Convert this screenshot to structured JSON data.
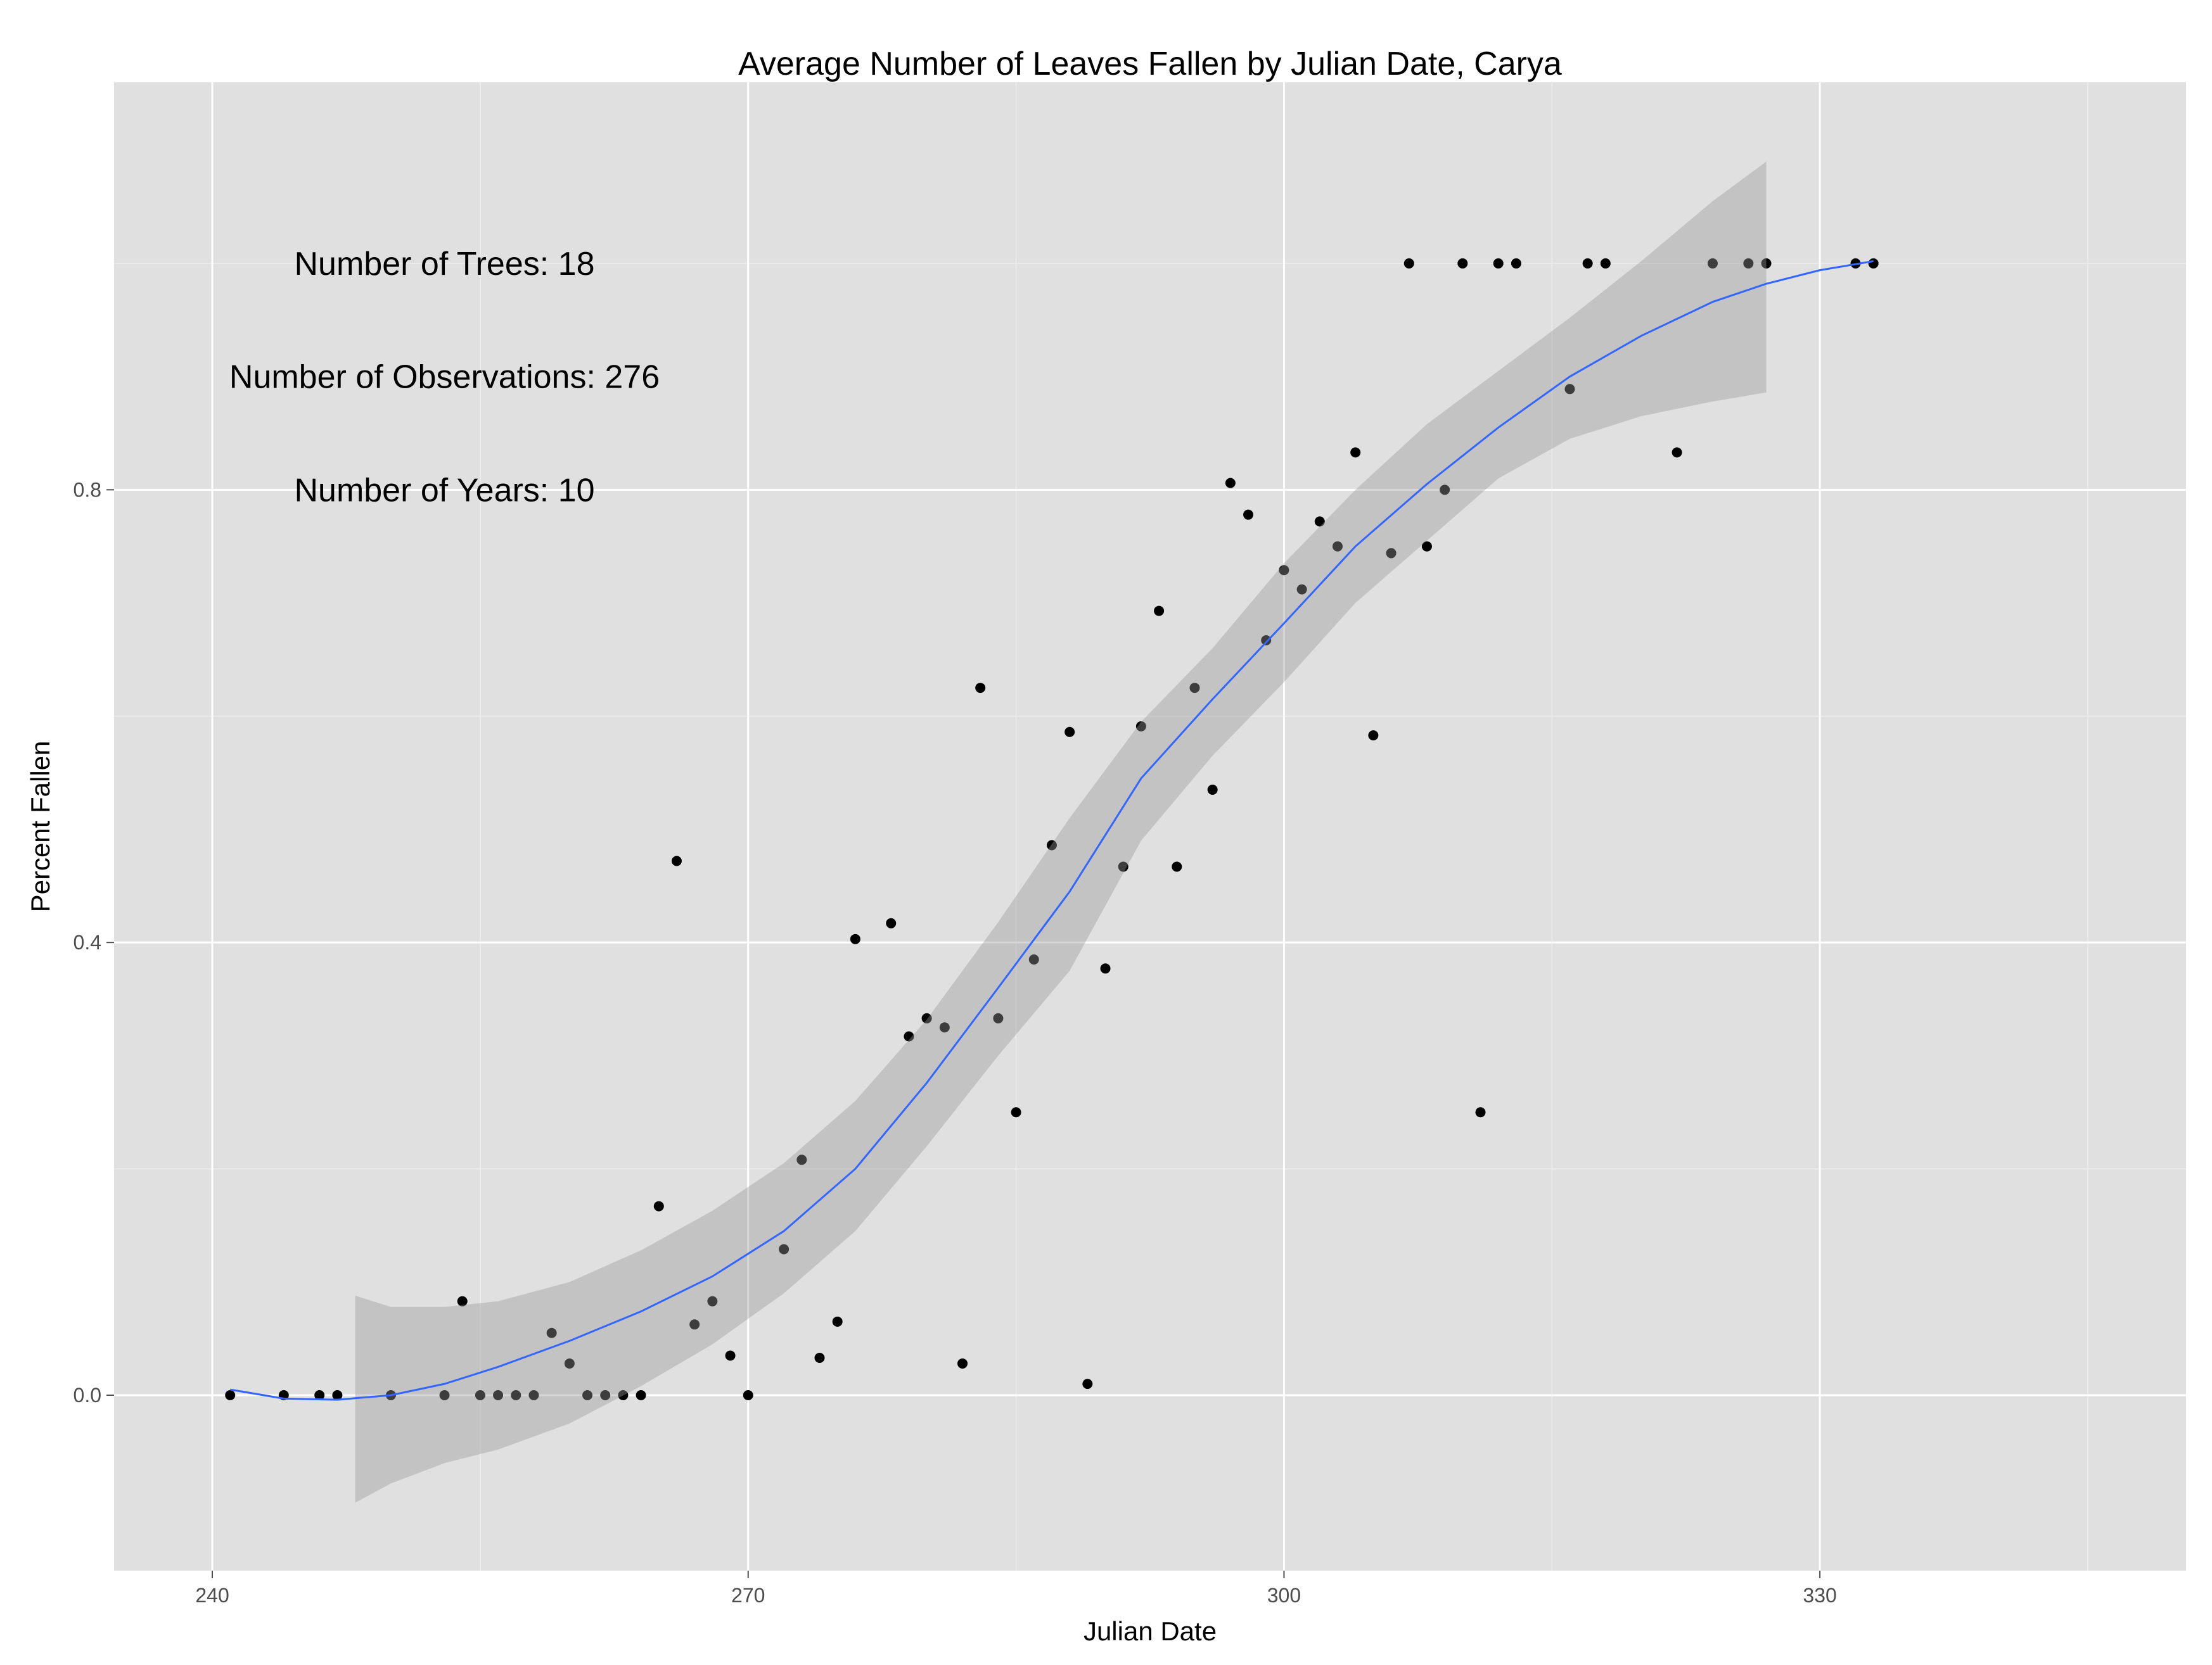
{
  "chart_data": {
    "type": "scatter",
    "title": "Average Number of Leaves Fallen by Julian Date, Carya",
    "xlabel": "Julian Date",
    "ylabel": "Percent Fallen",
    "xlim": [
      234.5,
      350.5
    ],
    "ylim": [
      -0.155,
      1.16
    ],
    "x_ticks": [
      240,
      270,
      300,
      330
    ],
    "x_tick_labels": [
      "240",
      "270",
      "300",
      "330"
    ],
    "y_ticks": [
      0.0,
      0.4,
      0.8
    ],
    "y_tick_labels": [
      "0.0",
      "0.4",
      "0.8"
    ],
    "grid": true,
    "legend": "none",
    "annotations": [
      {
        "text": "Number of Trees: 18",
        "x": 253,
        "y": 1.0
      },
      {
        "text": "Number of Observations: 276",
        "x": 253,
        "y": 0.9
      },
      {
        "text": "Number of Years: 10",
        "x": 253,
        "y": 0.8
      }
    ],
    "points": {
      "x": [
        241,
        244,
        246,
        247,
        250,
        253,
        254,
        255,
        256,
        257,
        258,
        259,
        260,
        261,
        262,
        263,
        264,
        265,
        266,
        267,
        268,
        269,
        270,
        272,
        273,
        274,
        275,
        276,
        278,
        279,
        280,
        281,
        282,
        283,
        284,
        285,
        286,
        287,
        288,
        289,
        290,
        291,
        292,
        293,
        294,
        295,
        296,
        297,
        298,
        299,
        300,
        301,
        302,
        303,
        304,
        305,
        306,
        307,
        308,
        309,
        310,
        311,
        312,
        313,
        316,
        317,
        318,
        322,
        324,
        326,
        327,
        332,
        333
      ],
      "y": [
        0.0,
        0.0,
        0.0,
        0.0,
        0.0,
        0.0,
        0.083,
        0.0,
        0.0,
        0.0,
        0.0,
        0.055,
        0.028,
        0.0,
        0.0,
        0.0,
        0.0,
        0.167,
        0.472,
        0.0625,
        0.083,
        0.035,
        0.0,
        0.129,
        0.208,
        0.033,
        0.065,
        0.403,
        0.417,
        0.317,
        0.333,
        0.325,
        0.028,
        0.625,
        0.333,
        0.25,
        0.385,
        0.486,
        0.586,
        0.01,
        0.377,
        0.467,
        0.591,
        0.693,
        0.467,
        0.625,
        0.535,
        0.806,
        0.778,
        0.667,
        0.729,
        0.712,
        0.772,
        0.75,
        0.833,
        0.583,
        0.744,
        1.0,
        0.75,
        0.8,
        1.0,
        0.25,
        1.0,
        1.0,
        0.889,
        1.0,
        1.0,
        0.833,
        1.0,
        1.0,
        1.0,
        1.0,
        1.0
      ]
    },
    "smooth": {
      "color": "#3366ff",
      "band_color": "#999999",
      "x": [
        241,
        244,
        247,
        250,
        253,
        256,
        260,
        264,
        268,
        272,
        276,
        280,
        284,
        288,
        292,
        296,
        300,
        304,
        308,
        312,
        316,
        320,
        324,
        327,
        330,
        333
      ],
      "y": [
        0.005,
        -0.003,
        -0.004,
        0.0,
        0.01,
        0.025,
        0.048,
        0.074,
        0.105,
        0.145,
        0.2,
        0.276,
        0.36,
        0.445,
        0.545,
        0.615,
        0.682,
        0.75,
        0.805,
        0.855,
        0.9,
        0.936,
        0.966,
        0.982,
        0.994,
        1.002
      ],
      "band_x": [
        248,
        250,
        253,
        256,
        260,
        264,
        268,
        272,
        276,
        280,
        284,
        288,
        292,
        296,
        300,
        304,
        308,
        312,
        316,
        320,
        324,
        327
      ],
      "band_lower": [
        -0.095,
        -0.078,
        -0.06,
        -0.048,
        -0.025,
        0.008,
        0.045,
        0.09,
        0.145,
        0.22,
        0.3,
        0.375,
        0.49,
        0.565,
        0.63,
        0.7,
        0.755,
        0.81,
        0.845,
        0.865,
        0.878,
        0.886
      ],
      "band_upper": [
        0.088,
        0.078,
        0.078,
        0.083,
        0.1,
        0.128,
        0.163,
        0.205,
        0.26,
        0.332,
        0.418,
        0.51,
        0.595,
        0.66,
        0.735,
        0.8,
        0.858,
        0.905,
        0.952,
        1.002,
        1.055,
        1.09
      ]
    }
  }
}
